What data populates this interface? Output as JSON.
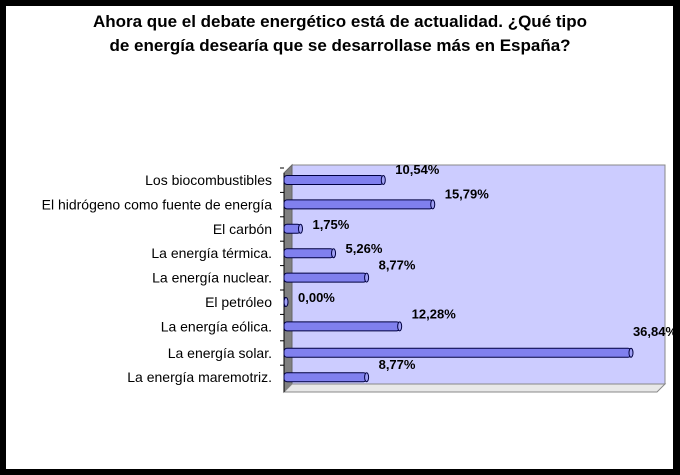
{
  "chart_data": {
    "type": "bar",
    "orientation": "horizontal",
    "title_lines": [
      "Ahora que el debate energético está de actualidad. ¿Qué tipo",
      "de energía desearía que se desarrollase más en España?"
    ],
    "categories": [
      "Los biocombustibles",
      "El hidrógeno como fuente de energía",
      "El carbón",
      "La energía térmica.",
      "La energía nuclear.",
      "El petróleo",
      "La energía eólica.",
      "La energía solar.",
      "La energía maremotriz."
    ],
    "values": [
      10.54,
      15.79,
      1.75,
      5.26,
      8.77,
      0.0,
      12.28,
      36.84,
      8.77
    ],
    "data_labels": [
      "10,54%",
      "15,79%",
      "1,75%",
      "5,26%",
      "8,77%",
      "0,00%",
      "12,28%",
      "36,84%",
      "8,77%"
    ],
    "xlabel": "",
    "ylabel": "",
    "xlim": [
      0,
      40
    ],
    "grid": false,
    "colors": {
      "bar": "#8080ee",
      "bar_edge": "#000040",
      "wall": "#ccccff",
      "side_wall": "#808080"
    }
  }
}
